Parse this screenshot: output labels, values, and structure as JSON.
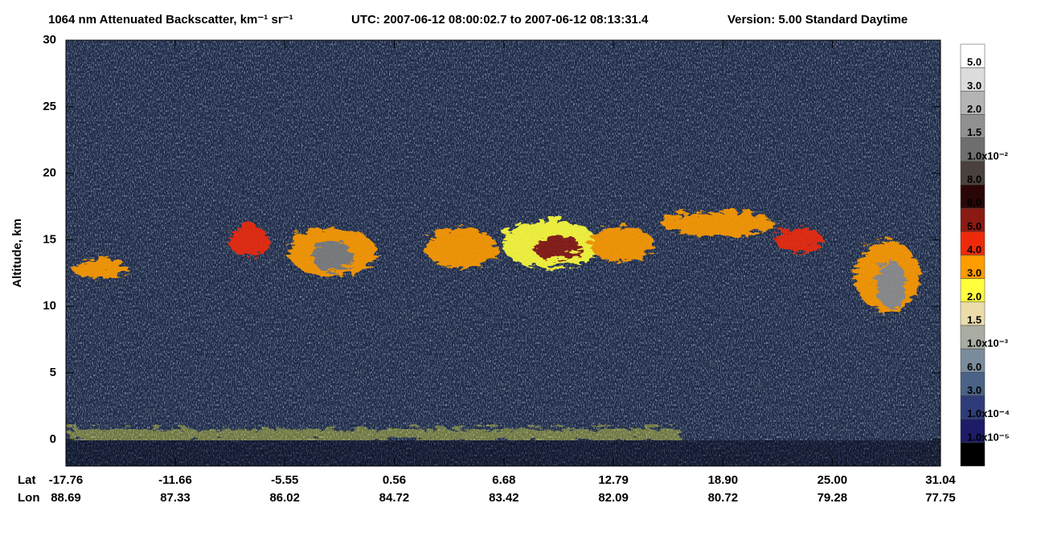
{
  "chart_data": {
    "type": "curtain",
    "title": "1064 nm Attenuated Backscatter, km⁻¹ sr⁻¹",
    "subtitle": "UTC:  2007-06-12 08:00:02.7  to  2007-06-12 08:13:31.4",
    "version": "Version: 5.00  Standard  Daytime",
    "ylabel": "Altitude, km",
    "ylim": [
      -2,
      30
    ],
    "yticks": [
      0,
      5,
      10,
      15,
      20,
      25,
      30
    ],
    "lat_label": "Lat",
    "lon_label": "Lon",
    "xlim": [
      -17.76,
      31.04
    ],
    "xticks": [
      -17.76,
      -11.66,
      -5.55,
      0.56,
      6.68,
      12.79,
      {
        "value": 18.9,
        "label": "18.90"
      },
      {
        "value": 25,
        "label": "25.00"
      },
      31.04
    ],
    "lon_ticks": [
      88.69,
      87.33,
      86.02,
      84.72,
      83.42,
      82.09,
      80.72,
      79.28,
      77.75
    ],
    "colorbar": {
      "colors": [
        "#ffffff",
        "#dcdcdc",
        "#b4b4b4",
        "#909090",
        "#6e6e6e",
        "#4a403e",
        "#2a0606",
        "#8a1a12",
        "#ee2a0a",
        "#ff9c00",
        "#ffff3c",
        "#ecdcaa",
        "#a8aca2",
        "#7a8c9c",
        "#4a6286",
        "#2e3c7a",
        "#1c1c68",
        "#000000"
      ],
      "labels": [
        "5.0",
        "3.0",
        "2.0",
        "1.5",
        "1.0x10⁻²",
        "8.0",
        "6.0",
        "5.0",
        "4.0",
        "3.0",
        "2.0",
        "1.5",
        "1.0x10⁻³",
        "6.0",
        "3.0",
        "1.0x10⁻⁴",
        "1.0x10⁻⁵"
      ]
    }
  }
}
